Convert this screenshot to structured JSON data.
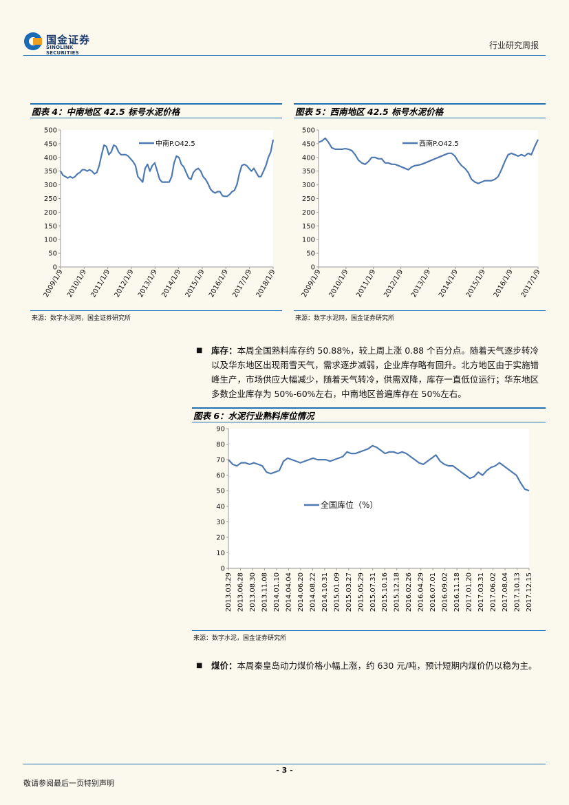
{
  "header": {
    "logo_cn": "国金证券",
    "logo_en": "SINOLINK SECURITIES",
    "report_type": "行业研究周报"
  },
  "fig4": {
    "title": "图表 4：中南地区 42.5 标号水泥价格",
    "source": "来源：数字水泥网，国金证券研究所",
    "chart_data": {
      "type": "line",
      "series": [
        {
          "name": "中南P.O42.5",
          "color": "#4e79b0",
          "values": [
            350,
            335,
            330,
            325,
            330,
            325,
            330,
            340,
            345,
            355,
            355,
            350,
            355,
            350,
            340,
            345,
            370,
            410,
            445,
            440,
            410,
            420,
            445,
            440,
            420,
            410,
            410,
            410,
            405,
            395,
            385,
            370,
            330,
            320,
            310,
            360,
            375,
            350,
            370,
            380,
            350,
            320,
            310,
            310,
            310,
            310,
            330,
            380,
            405,
            400,
            375,
            365,
            345,
            325,
            320,
            345,
            355,
            360,
            350,
            330,
            320,
            305,
            285,
            275,
            270,
            275,
            275,
            260,
            258,
            258,
            265,
            275,
            280,
            300,
            340,
            370,
            375,
            370,
            360,
            350,
            360,
            345,
            330,
            330,
            350,
            370,
            400,
            420,
            465
          ]
        }
      ],
      "x_ticks": [
        "2009/1/9",
        "2010/1/9",
        "2011/1/9",
        "2012/1/9",
        "2013/1/9",
        "2014/1/9",
        "2015/1/9",
        "2016/1/9",
        "2017/1/9",
        "2018/1/9"
      ],
      "y_ticks": [
        "500",
        "450",
        "400",
        "350",
        "300",
        "250",
        "200",
        "150",
        "100",
        "50",
        "0"
      ],
      "ylim": [
        0,
        500
      ],
      "legend": "top-left"
    }
  },
  "fig5": {
    "title": "图表 5：西南地区 42.5 标号水泥价格",
    "source": "来源：数字水泥网，国金证券研究所",
    "chart_data": {
      "type": "line",
      "series": [
        {
          "name": "西南P.O42.5",
          "color": "#4e79b0",
          "values": [
            455,
            460,
            470,
            455,
            435,
            430,
            430,
            430,
            432,
            430,
            425,
            410,
            390,
            380,
            375,
            385,
            400,
            400,
            395,
            395,
            380,
            380,
            375,
            375,
            370,
            365,
            360,
            355,
            365,
            370,
            372,
            375,
            380,
            385,
            390,
            395,
            400,
            405,
            410,
            415,
            415,
            405,
            385,
            370,
            360,
            345,
            320,
            310,
            305,
            310,
            315,
            315,
            315,
            320,
            330,
            355,
            385,
            410,
            415,
            410,
            405,
            410,
            405,
            415,
            410,
            440,
            465
          ]
        }
      ],
      "x_ticks": [
        "2009/1/9",
        "2010/1/9",
        "2011/1/9",
        "2012/1/9",
        "2013/1/9",
        "2014/1/9",
        "2015/1/9",
        "2016/1/9",
        "2017/1/9"
      ],
      "y_ticks": [
        "500",
        "450",
        "400",
        "350",
        "300",
        "250",
        "200",
        "150",
        "100",
        "50",
        "0"
      ],
      "ylim": [
        0,
        500
      ],
      "legend": "top-center"
    }
  },
  "inventory": {
    "label": "库存：",
    "text": "本周全国熟料库存约 50.88%，较上周上涨 0.88 个百分点。随着天气逐步转冷以及华东地区出现雨雪天气，需求逐步减弱，企业库存略有回升。北方地区由于实施错峰生产，市场供应大幅减少，随着天气转冷，供需双降，库存一直低位运行；华东地区多数企业库存为 50%-60%左右，中南地区普遍库存在 50%左右。"
  },
  "fig6": {
    "title": "图表 6：水泥行业熟料库位情况",
    "source": "来源：数字水泥，国金证券研究所",
    "chart_data": {
      "type": "line",
      "series": [
        {
          "name": "全国库位（%）",
          "color": "#4e79b0",
          "values": [
            70,
            67,
            66,
            68,
            68,
            67,
            68,
            67,
            66,
            62,
            61,
            62,
            63,
            69,
            71,
            70,
            69,
            68,
            69,
            70,
            71,
            70,
            70,
            70,
            69,
            70,
            71,
            72,
            75,
            74,
            74,
            75,
            76,
            77,
            79,
            78,
            76,
            74,
            75,
            75,
            74,
            75,
            74,
            72,
            70,
            68,
            67,
            69,
            71,
            73,
            69,
            67,
            66,
            66,
            64,
            62,
            60,
            58,
            59,
            62,
            60,
            63,
            65,
            66,
            68,
            66,
            64,
            62,
            60,
            55,
            51,
            50
          ]
        }
      ],
      "x_ticks": [
        "2013.03.29",
        "2013.06.28",
        "2013.08.30",
        "2013.11.08",
        "2014.01.10",
        "2014.04.04",
        "2014.06.20",
        "2014.08.22",
        "2014.10.31",
        "2015.01.09",
        "2015.03.27",
        "2015.05.29",
        "2015.07.31",
        "2015.10.16",
        "2015.12.18",
        "2016.02.26",
        "2016.04.29",
        "2016.07.01",
        "2016.09.02",
        "2016.11.18",
        "2017.01.20",
        "2017.03.31",
        "2017.06.02",
        "2017.08.04",
        "2017.10.13",
        "2017.12.15"
      ],
      "y_ticks": [
        "90",
        "80",
        "70",
        "60",
        "50",
        "40",
        "30",
        "20",
        "10",
        "0"
      ],
      "ylim": [
        0,
        90
      ],
      "legend": "center"
    }
  },
  "coal": {
    "label": "煤价：",
    "text": "本周秦皇岛动力煤价格小幅上涨，约 630 元/吨，预计短期内煤价仍以稳为主。"
  },
  "footer": {
    "page": "- 3 -",
    "note": "敬请参阅最后一页特别声明"
  }
}
